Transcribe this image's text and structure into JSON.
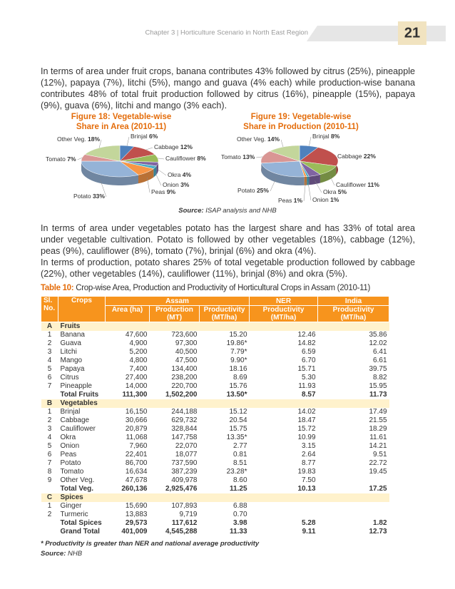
{
  "header": {
    "chapter": "Chapter 3 | Horticulture Scenario in North East Region",
    "page_number": "21"
  },
  "paragraphs": [
    "In terms of area under fruit crops, banana contributes 43% followed by citrus (25%), pineapple (12%), papaya (7%), litchi (5%), mango and guava (4% each) while production-wise banana contributes 48% of total fruit production followed by citrus (16%), pineapple (15%), papaya (9%), guava (6%), litchi and mango (3% each).",
    "In terms of area under vegetables potato has the largest share and has 33% of total area under vegetable cultivation. Potato is followed by other vegetables (18%), cabbage (12%), peas (9%), cauliflower (8%), tomato (7%), brinjal (6%) and okra (4%).",
    "In terms of production, potato shares 25% of total vegetable production followed by cabbage (22%), other vegetables (14%), cauliflower (11%), brinjal (8%) and okra (5%)."
  ],
  "chart_data": [
    {
      "type": "pie",
      "title": "Figure 18: Vegetable-wise Share in Area (2010-11)",
      "categories": [
        "Brinjal",
        "Cabbage",
        "Cauliflower",
        "Okra",
        "Onion",
        "Peas",
        "Potato",
        "Tomato",
        "Other Veg."
      ],
      "values": [
        6,
        12,
        8,
        4,
        3,
        9,
        33,
        7,
        18
      ],
      "value_labels": [
        "6%",
        "12%",
        "8%",
        "4%",
        "3%",
        "9%",
        "33%",
        "7%",
        "18%"
      ],
      "colors": [
        "#4f81bd",
        "#c0504d",
        "#9bbb59",
        "#8064a2",
        "#4bacc6",
        "#f79646",
        "#95b3d7",
        "#d99694",
        "#c3d69b"
      ]
    },
    {
      "type": "pie",
      "title": "Figure 19: Vegetable-wise Share in Production (2010-11)",
      "categories": [
        "Brinjal",
        "Cabbage",
        "Cauliflower",
        "Okra",
        "Onion",
        "Peas",
        "Potato",
        "Tomato",
        "Other Veg."
      ],
      "values": [
        8,
        22,
        11,
        5,
        1,
        1,
        25,
        13,
        14
      ],
      "value_labels": [
        "8%",
        "22%",
        "11%",
        "5%",
        "1%",
        "1%",
        "25%",
        "13%",
        "14%"
      ],
      "colors": [
        "#4f81bd",
        "#c0504d",
        "#9bbb59",
        "#8064a2",
        "#4bacc6",
        "#f79646",
        "#95b3d7",
        "#d99694",
        "#c3d69b"
      ]
    }
  ],
  "source": {
    "label": "Source:",
    "text": "ISAP analysis and NHB"
  },
  "table": {
    "label": "Table 10:",
    "title": "Crop-wise Area, Production and Productivity of Horticultural Crops in Assam (2010-11)",
    "header": {
      "sl": "Sl. No.",
      "crops": "Crops",
      "assam": "Assam",
      "ner": "NER",
      "india": "India",
      "area": "Area (ha)",
      "production": "Production (MT)",
      "productivity": "Productivity (MT/ha)",
      "ner_productivity": "Productivity (MT/ha)",
      "india_productivity": "Productivity (MT/ha)"
    },
    "rows": [
      {
        "sl": "A",
        "crop": "Fruits"
      },
      {
        "sl": "1",
        "crop": "Banana",
        "area": "47,600",
        "production": "723,600",
        "productivity": "15.20",
        "ner": "12.46",
        "india": "35.86"
      },
      {
        "sl": "2",
        "crop": "Guava",
        "area": "4,900",
        "production": "97,300",
        "productivity": "19.86*",
        "ner": "14.82",
        "india": "12.02"
      },
      {
        "sl": "3",
        "crop": "Litchi",
        "area": "5,200",
        "production": "40,500",
        "productivity": "7.79*",
        "ner": "6.59",
        "india": "6.41"
      },
      {
        "sl": "4",
        "crop": "Mango",
        "area": "4,800",
        "production": "47,500",
        "productivity": "9.90*",
        "ner": "6.70",
        "india": "6.61"
      },
      {
        "sl": "5",
        "crop": "Papaya",
        "area": "7,400",
        "production": "134,400",
        "productivity": "18.16",
        "ner": "15.71",
        "india": "39.75"
      },
      {
        "sl": "6",
        "crop": "Citrus",
        "area": "27,400",
        "production": "238,200",
        "productivity": "8.69",
        "ner": "5.30",
        "india": "8.82"
      },
      {
        "sl": "7",
        "crop": "Pineapple",
        "area": "14,000",
        "production": "220,700",
        "productivity": "15.76",
        "ner": "11.93",
        "india": "15.95"
      },
      {
        "crop": "Total Fruits",
        "area": "111,300",
        "production": "1,502,200",
        "productivity": "13.50*",
        "ner": "8.57",
        "india": "11.73"
      },
      {
        "sl": "B",
        "crop": "Vegetables"
      },
      {
        "sl": "1",
        "crop": "Brinjal",
        "area": "16,150",
        "production": "244,188",
        "productivity": "15.12",
        "ner": "14.02",
        "india": "17.49"
      },
      {
        "sl": "2",
        "crop": "Cabbage",
        "area": "30,666",
        "production": "629,732",
        "productivity": "20.54",
        "ner": "18.47",
        "india": "21.55"
      },
      {
        "sl": "3",
        "crop": "Cauliflower",
        "area": "20,879",
        "production": "328,844",
        "productivity": "15.75",
        "ner": "15.72",
        "india": "18.29"
      },
      {
        "sl": "4",
        "crop": "Okra",
        "area": "11,068",
        "production": "147,758",
        "productivity": "13.35*",
        "ner": "10.99",
        "india": "11.61"
      },
      {
        "sl": "5",
        "crop": "Onion",
        "area": "7,960",
        "production": "22,070",
        "productivity": "2.77",
        "ner": "3.15",
        "india": "14.21"
      },
      {
        "sl": "6",
        "crop": "Peas",
        "area": "22,401",
        "production": "18,077",
        "productivity": "0.81",
        "ner": "2.64",
        "india": "9.51"
      },
      {
        "sl": "7",
        "crop": "Potato",
        "area": "86,700",
        "production": "737,590",
        "productivity": "8.51",
        "ner": "8.77",
        "india": "22.72"
      },
      {
        "sl": "8",
        "crop": "Tomato",
        "area": "16,634",
        "production": "387,239",
        "productivity": "23.28*",
        "ner": "19.83",
        "india": "19.45"
      },
      {
        "sl": "9",
        "crop": "Other Veg.",
        "area": "47,678",
        "production": "409,978",
        "productivity": "8.60",
        "ner": "7.50"
      },
      {
        "crop": "Total Veg.",
        "area": "260,136",
        "production": "2,925,476",
        "productivity": "11.25",
        "ner": "10.13",
        "india": "17.25"
      },
      {
        "sl": "C",
        "crop": "Spices"
      },
      {
        "sl": "1",
        "crop": "Ginger",
        "area": "15,690",
        "production": "107,893",
        "productivity": "6.88"
      },
      {
        "sl": "2",
        "crop": "Turmeric",
        "area": "13,883",
        "production": "9,719",
        "productivity": "0.70"
      },
      {
        "crop": "Total Spices",
        "area": "29,573",
        "production": "117,612",
        "productivity": "3.98",
        "ner": "5.28",
        "india": "1.82"
      },
      {
        "crop": "Grand Total",
        "area": "401,009",
        "production": "4,545,288",
        "productivity": "11.33",
        "ner": "9.11",
        "india": "12.73"
      }
    ]
  },
  "footnotes": {
    "note": "* Productivity is greater than NER and national average productivity",
    "source_label": "Source:",
    "source_text": "NHB"
  }
}
